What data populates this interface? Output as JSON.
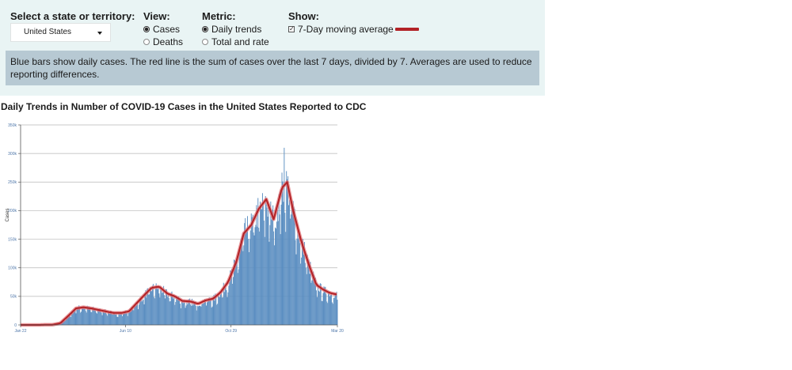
{
  "controls": {
    "state_label": "Select a state or territory:",
    "state_value": "United States",
    "view_label": "View:",
    "view_options": [
      "Cases",
      "Deaths"
    ],
    "view_selected": "Cases",
    "metric_label": "Metric:",
    "metric_options": [
      "Daily trends",
      "Total and rate"
    ],
    "metric_selected": "Daily trends",
    "show_label": "Show:",
    "show_option": "7-Day moving average",
    "show_checked": true
  },
  "note": "Blue bars show daily cases. The red line is the sum of cases over the last 7 days, divided by 7. Averages are used to reduce reporting differences.",
  "colors": {
    "bar": "#5b8ec1",
    "line": "#b22226",
    "line_halo": "#e1757a",
    "grid": "#b7b7b7"
  },
  "chart_data": {
    "type": "bar",
    "title": "Daily Trends in Number of COVID-19 Cases in the United States Reported to CDC",
    "xlabel": "",
    "ylabel": "Cases",
    "ylim": [
      0,
      350000
    ],
    "yticks": [
      0,
      50000,
      100000,
      150000,
      200000,
      250000,
      300000,
      350000
    ],
    "ytick_labels": [
      "0",
      "50k",
      "100k",
      "150k",
      "200k",
      "250k",
      "300k",
      "350k"
    ],
    "xticks": [
      "2020-01-22",
      "2020-06-10",
      "2020-10-29",
      "2021-03-20"
    ],
    "xtick_labels": [
      "Jan 22",
      "Jun 10",
      "Oct 29",
      "Mar 20"
    ],
    "x_range": [
      "2020-01-22",
      "2021-03-20"
    ],
    "grid": true,
    "series": [
      {
        "name": "Daily cases",
        "kind": "bar",
        "points": [
          [
            "2020-01-22",
            0
          ],
          [
            "2020-02-15",
            0
          ],
          [
            "2020-03-05",
            500
          ],
          [
            "2020-03-15",
            3000
          ],
          [
            "2020-03-25",
            15000
          ],
          [
            "2020-04-05",
            30000
          ],
          [
            "2020-04-15",
            31000
          ],
          [
            "2020-04-25",
            29000
          ],
          [
            "2020-05-10",
            25000
          ],
          [
            "2020-05-25",
            21000
          ],
          [
            "2020-06-05",
            21000
          ],
          [
            "2020-06-15",
            24000
          ],
          [
            "2020-06-25",
            38000
          ],
          [
            "2020-07-05",
            52000
          ],
          [
            "2020-07-15",
            64000
          ],
          [
            "2020-07-25",
            66000
          ],
          [
            "2020-08-05",
            54000
          ],
          [
            "2020-08-15",
            50000
          ],
          [
            "2020-08-25",
            42000
          ],
          [
            "2020-09-05",
            41000
          ],
          [
            "2020-09-15",
            37000
          ],
          [
            "2020-09-25",
            44000
          ],
          [
            "2020-10-05",
            45000
          ],
          [
            "2020-10-15",
            57000
          ],
          [
            "2020-10-25",
            75000
          ],
          [
            "2020-11-05",
            110000
          ],
          [
            "2020-11-15",
            160000
          ],
          [
            "2020-11-25",
            175000
          ],
          [
            "2020-12-05",
            200000
          ],
          [
            "2020-12-15",
            215000
          ],
          [
            "2020-12-25",
            185000
          ],
          [
            "2021-01-05",
            235000
          ],
          [
            "2021-01-12",
            248000
          ],
          [
            "2021-01-20",
            200000
          ],
          [
            "2021-01-30",
            150000
          ],
          [
            "2021-02-10",
            105000
          ],
          [
            "2021-02-20",
            70000
          ],
          [
            "2021-03-01",
            60000
          ],
          [
            "2021-03-10",
            56000
          ],
          [
            "2021-03-20",
            53000
          ]
        ],
        "peak": [
          "2021-01-08",
          310000
        ]
      },
      {
        "name": "7-Day moving average",
        "kind": "line",
        "points": [
          [
            "2020-01-22",
            0
          ],
          [
            "2020-02-15",
            0
          ],
          [
            "2020-03-05",
            500
          ],
          [
            "2020-03-15",
            3000
          ],
          [
            "2020-03-25",
            15000
          ],
          [
            "2020-04-05",
            29000
          ],
          [
            "2020-04-15",
            31000
          ],
          [
            "2020-04-25",
            29000
          ],
          [
            "2020-05-10",
            25000
          ],
          [
            "2020-05-25",
            21000
          ],
          [
            "2020-06-05",
            21000
          ],
          [
            "2020-06-15",
            24000
          ],
          [
            "2020-06-25",
            38000
          ],
          [
            "2020-07-05",
            52000
          ],
          [
            "2020-07-15",
            65000
          ],
          [
            "2020-07-25",
            67000
          ],
          [
            "2020-08-05",
            55000
          ],
          [
            "2020-08-15",
            50000
          ],
          [
            "2020-08-25",
            42000
          ],
          [
            "2020-09-05",
            41000
          ],
          [
            "2020-09-15",
            37000
          ],
          [
            "2020-09-25",
            43000
          ],
          [
            "2020-10-05",
            46000
          ],
          [
            "2020-10-15",
            57000
          ],
          [
            "2020-10-25",
            75000
          ],
          [
            "2020-11-05",
            110000
          ],
          [
            "2020-11-15",
            160000
          ],
          [
            "2020-11-25",
            175000
          ],
          [
            "2020-12-05",
            203000
          ],
          [
            "2020-12-15",
            220000
          ],
          [
            "2020-12-25",
            185000
          ],
          [
            "2021-01-05",
            240000
          ],
          [
            "2021-01-12",
            250000
          ],
          [
            "2021-01-20",
            200000
          ],
          [
            "2021-01-30",
            150000
          ],
          [
            "2021-02-10",
            105000
          ],
          [
            "2021-02-20",
            70000
          ],
          [
            "2021-03-01",
            62000
          ],
          [
            "2021-03-10",
            56000
          ],
          [
            "2021-03-20",
            53000
          ]
        ]
      }
    ]
  }
}
